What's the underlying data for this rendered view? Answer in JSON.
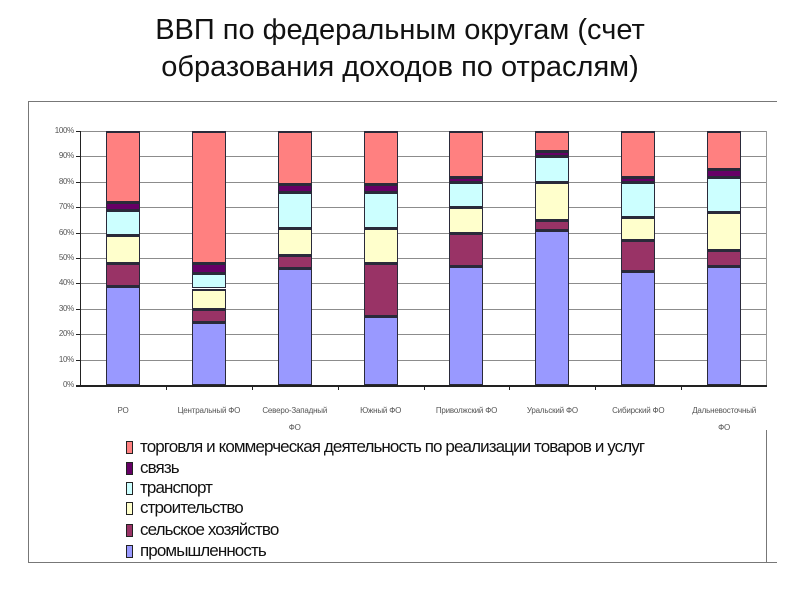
{
  "title": {
    "line1": "ВВП по федеральным округам (счет",
    "line2": "образования доходов по отраслям)"
  },
  "colors": {
    "trade": "#FF8080",
    "communication": "#660066",
    "transport": "#CCFFFF",
    "construction": "#FFFFCC",
    "agriculture": "#993366",
    "industry": "#9999FF"
  },
  "y_axis": {
    "ticks": [
      "0%",
      "10%",
      "20%",
      "30%",
      "40%",
      "50%",
      "60%",
      "70%",
      "80%",
      "90%",
      "100%"
    ]
  },
  "x_axis": {
    "labels": [
      {
        "line1": "РО",
        "line2": ""
      },
      {
        "line1": "Центральный ФО",
        "line2": ""
      },
      {
        "line1": "Северо-Западный",
        "line2": "ФО"
      },
      {
        "line1": "Южный ФО",
        "line2": ""
      },
      {
        "line1": "Приволжский ФО",
        "line2": ""
      },
      {
        "line1": "Уральский ФО",
        "line2": ""
      },
      {
        "line1": "Сибирский ФО",
        "line2": ""
      },
      {
        "line1": "Дальневосточный",
        "line2": "ФО"
      }
    ]
  },
  "legend": {
    "items": [
      {
        "key": "trade",
        "label": "торговля и коммерческая деятельность по реализации товаров и услуг"
      },
      {
        "key": "communication",
        "label": "связь"
      },
      {
        "key": "transport",
        "label": "транспорт"
      },
      {
        "key": "construction",
        "label": "строительство"
      },
      {
        "key": "agriculture",
        "label": "сельское хозяйство"
      },
      {
        "key": "industry",
        "label": "промышленность"
      }
    ]
  },
  "chart_data": {
    "type": "bar",
    "stacked": true,
    "normalized_percent": true,
    "title": "ВВП по федеральным округам (счет образования доходов по отраслям)",
    "xlabel": "",
    "ylabel": "",
    "ylim": [
      0,
      100
    ],
    "y_tick_format": "%",
    "grid": true,
    "legend_position": "bottom",
    "categories": [
      "РО",
      "Центральный ФО",
      "Северо-Западный ФО",
      "Южный ФО",
      "Приволжский ФО",
      "Уральский ФО",
      "Сибирский ФО",
      "Дальневосточный ФО"
    ],
    "series": [
      {
        "name": "промышленность",
        "color": "#9999FF",
        "values": [
          39,
          25,
          46,
          27,
          47,
          61,
          45,
          47
        ]
      },
      {
        "name": "сельское хозяйство",
        "color": "#993366",
        "values": [
          9,
          5,
          5,
          21,
          13,
          4,
          12,
          6
        ]
      },
      {
        "name": "строительство",
        "color": "#FFFFCC",
        "values": [
          11,
          8,
          11,
          14,
          10,
          15,
          9,
          15
        ]
      },
      {
        "name": "транспорт",
        "color": "#CCFFFF",
        "values": [
          10,
          6,
          14,
          14,
          10,
          10,
          14,
          14
        ]
      },
      {
        "name": "связь",
        "color": "#660066",
        "values": [
          3,
          4,
          3,
          3,
          2,
          2,
          2,
          3
        ]
      },
      {
        "name": "торговля и коммерческая деятельность по реализации товаров и услуг",
        "color": "#FF8080",
        "values": [
          28,
          52,
          21,
          21,
          18,
          8,
          18,
          15
        ]
      }
    ]
  }
}
